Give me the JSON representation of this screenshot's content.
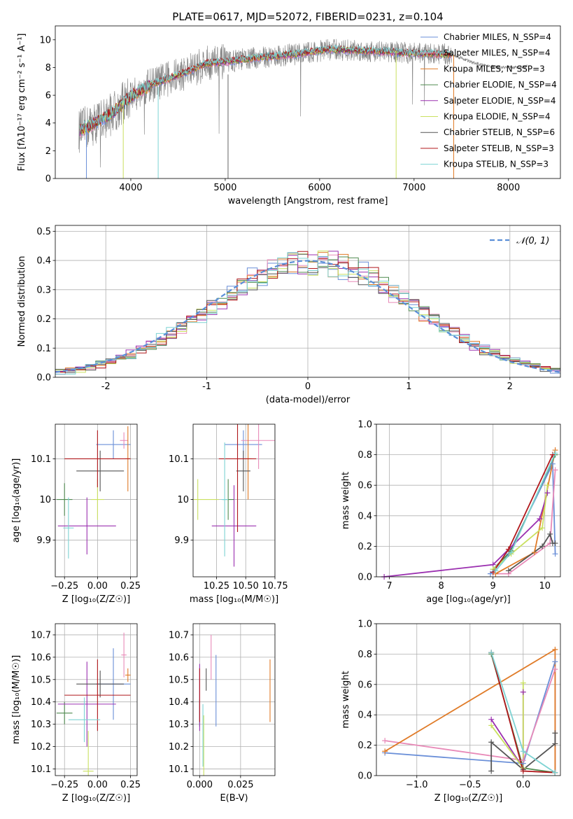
{
  "colors": [
    "#6a8fd8",
    "#e88ab8",
    "#e07b28",
    "#4f8a4f",
    "#9b30b0",
    "#c9e060",
    "#555555",
    "#b0181c",
    "#7dd3d3"
  ],
  "chart_data": [
    {
      "id": "spectrum",
      "type": "line",
      "title": "PLATE=0617, MJD=52072, FIBERID=0231, z=0.104",
      "xlabel": "wavelength [Angstrom, rest frame]",
      "ylabel": "Flux [fλ10⁻¹⁷ erg cm⁻² s⁻¹ A⁻¹]",
      "xlim": [
        3200,
        8550
      ],
      "ylim": [
        0,
        11
      ],
      "xticks": [
        4000,
        5000,
        6000,
        7000,
        8000
      ],
      "yticks": [
        0,
        2,
        4,
        6,
        8,
        10
      ],
      "legend_position": "upper-right",
      "legend": [
        "Chabrier MILES, N_SSP=4",
        "Salpeter MILES, N_SSP=4",
        "Kroupa MILES, N_SSP=3",
        "Chabrier ELODIE, N_SSP=4",
        "Salpeter ELODIE, N_SSP=4",
        "Kroupa ELODIE, N_SSP=4",
        "Chabrier STELIB, N_SSP=6",
        "Salpeter STELIB, N_SSP=3",
        "Kroupa STELIB, N_SSP=3"
      ],
      "data_series": {
        "name": "",
        "color": "#808080"
      },
      "model_continuum": {
        "x": [
          3450,
          3600,
          3800,
          4000,
          4200,
          4400,
          4600,
          4800,
          5000,
          5200,
          5500,
          5800,
          6100,
          6500,
          6800,
          7000,
          7200,
          7400
        ],
        "y": [
          3.4,
          3.9,
          4.7,
          5.9,
          6.7,
          7.2,
          7.7,
          8.3,
          8.4,
          8.6,
          8.8,
          9.0,
          9.3,
          9.2,
          9.1,
          9.0,
          9.0,
          8.9
        ]
      },
      "data_tail": {
        "x": [
          7400,
          7500,
          7600,
          7700,
          7800,
          7900,
          8000,
          8100,
          8200
        ],
        "y": [
          8.9,
          8.7,
          8.4,
          8.2,
          8.1,
          8.0,
          8.0,
          8.0,
          8.1
        ]
      }
    },
    {
      "id": "residuals",
      "type": "histogram",
      "xlabel": "(data-model)/error",
      "ylabel": "Normed distribution",
      "xlim": [
        -2.5,
        2.5
      ],
      "ylim": [
        0,
        0.52
      ],
      "xticks": [
        -2,
        -1,
        0,
        1,
        2
      ],
      "yticks": [
        0.0,
        0.1,
        0.2,
        0.3,
        0.4,
        0.5
      ],
      "grid": true,
      "legend_position": "upper-right",
      "gaussian_label": "𝒩(0, 1)",
      "gaussian_color": "#5b8fd8",
      "bin_width": 0.1,
      "bins_from": -2.5,
      "bins_to": 2.5
    },
    {
      "id": "age_vs_z",
      "type": "errorbar",
      "xlabel": "Z [log₁₀(Z/Z☉)]",
      "ylabel": "age  [log₁₀(age/yr)]",
      "xlim": [
        -0.32,
        0.3
      ],
      "ylim": [
        9.81,
        10.185
      ],
      "xticks": [
        -0.25,
        0.0,
        0.25
      ],
      "xticklabels": [
        "−0.25",
        "0.00",
        "0.25"
      ],
      "yticks": [
        9.9,
        10.0,
        10.1
      ],
      "grid": true,
      "points": [
        {
          "x": 0.12,
          "xerr": 0.13,
          "y": 10.135,
          "yerr": 0.035,
          "c": 0
        },
        {
          "x": 0.2,
          "xerr": 0.03,
          "y": 10.145,
          "yerr": 0.02,
          "c": 1
        },
        {
          "x": 0.23,
          "xerr": 0.02,
          "y": 10.1,
          "yerr": 0.08,
          "c": 2
        },
        {
          "x": -0.25,
          "xerr": 0.06,
          "y": 10.0,
          "yerr": 0.04,
          "c": 3
        },
        {
          "x": -0.08,
          "xerr": 0.22,
          "y": 9.935,
          "yerr": 0.07,
          "c": 4
        },
        {
          "x": 0.0,
          "xerr": 0.05,
          "y": 10.0,
          "yerr": 0.05,
          "c": 5
        },
        {
          "x": 0.02,
          "xerr": 0.18,
          "y": 10.07,
          "yerr": 0.05,
          "c": 6
        },
        {
          "x": 0.0,
          "xerr": 0.25,
          "y": 10.1,
          "yerr": 0.07,
          "c": 7
        },
        {
          "x": -0.22,
          "xerr": 0.04,
          "y": 9.93,
          "yerr": 0.075,
          "c": 8
        }
      ]
    },
    {
      "id": "age_vs_mass",
      "type": "errorbar",
      "xlabel": "mass [log₁₀(M/M☉)]",
      "ylabel": "",
      "xlim": [
        10.05,
        10.75
      ],
      "ylim": [
        9.81,
        10.185
      ],
      "xticks": [
        10.25,
        10.5,
        10.75
      ],
      "xticklabels": [
        "10.25",
        "10.50",
        "10.75"
      ],
      "yticks": [
        9.9,
        10.0,
        10.1
      ],
      "grid": true,
      "points": [
        {
          "x": 10.48,
          "xerr": 0.16,
          "y": 10.135,
          "yerr": 0.035,
          "c": 0
        },
        {
          "x": 10.61,
          "xerr": 0.15,
          "y": 10.145,
          "yerr": 0.07,
          "c": 1
        },
        {
          "x": 10.52,
          "xerr": 0.03,
          "y": 10.1,
          "yerr": 0.1,
          "c": 2
        },
        {
          "x": 10.35,
          "xerr": 0.05,
          "y": 10.0,
          "yerr": 0.05,
          "c": 3
        },
        {
          "x": 10.4,
          "xerr": 0.19,
          "y": 9.935,
          "yerr": 0.1,
          "c": 4
        },
        {
          "x": 10.09,
          "xerr": 0.18,
          "y": 10.0,
          "yerr": 0.05,
          "c": 5
        },
        {
          "x": 10.48,
          "xerr": 0.06,
          "y": 10.07,
          "yerr": 0.05,
          "c": 6
        },
        {
          "x": 10.43,
          "xerr": 0.16,
          "y": 10.1,
          "yerr": 0.18,
          "c": 7
        },
        {
          "x": 10.32,
          "xerr": 0.03,
          "y": 10.0,
          "yerr": 0.14,
          "c": 8
        }
      ]
    },
    {
      "id": "mass_weight_vs_age",
      "type": "line",
      "xlabel": "age  [log₁₀(age/yr)]",
      "ylabel": "mass weight",
      "xlim": [
        6.75,
        10.3
      ],
      "ylim": [
        0,
        1.0
      ],
      "xticks": [
        7,
        8,
        9,
        10
      ],
      "yticks": [
        0.0,
        0.2,
        0.4,
        0.6,
        0.8,
        1.0
      ],
      "grid": true,
      "series": [
        {
          "c": 0,
          "x": [
            8.95,
            9.3,
            10.15,
            10.2
          ],
          "y": [
            0.02,
            0.15,
            0.74,
            0.15
          ]
        },
        {
          "c": 1,
          "x": [
            9.05,
            9.3,
            10.1,
            10.2
          ],
          "y": [
            0.02,
            0.02,
            0.22,
            0.7
          ]
        },
        {
          "c": 2,
          "x": [
            9.05,
            9.8,
            10.2
          ],
          "y": [
            0.02,
            0.16,
            0.83
          ]
        },
        {
          "c": 3,
          "x": [
            9.0,
            9.35,
            10.2
          ],
          "y": [
            0.05,
            0.17,
            0.8
          ]
        },
        {
          "c": 4,
          "x": [
            6.9,
            9.0,
            9.9,
            10.05
          ],
          "y": [
            0.0,
            0.08,
            0.38,
            0.55
          ]
        },
        {
          "c": 5,
          "x": [
            9.0,
            9.35,
            9.95,
            10.05
          ],
          "y": [
            0.05,
            0.15,
            0.32,
            0.6
          ]
        },
        {
          "c": 6,
          "x": [
            9.3,
            9.95,
            10.1,
            10.15,
            10.2
          ],
          "y": [
            0.04,
            0.2,
            0.28,
            0.22,
            0.22
          ]
        },
        {
          "c": 7,
          "x": [
            9.0,
            9.3,
            10.15
          ],
          "y": [
            0.03,
            0.18,
            0.8
          ]
        },
        {
          "c": 8,
          "x": [
            9.05,
            9.35,
            10.2
          ],
          "y": [
            0.04,
            0.16,
            0.81
          ]
        }
      ]
    },
    {
      "id": "mass_vs_z",
      "type": "errorbar",
      "xlabel": "Z [log₁₀(Z/Z☉)]",
      "ylabel": "mass [log₁₀(M/M☉)]",
      "xlim": [
        -0.32,
        0.3
      ],
      "ylim": [
        10.07,
        10.75
      ],
      "xticks": [
        -0.25,
        0.0,
        0.25
      ],
      "xticklabels": [
        "−0.25",
        "0.00",
        "0.25"
      ],
      "yticks": [
        10.1,
        10.2,
        10.3,
        10.4,
        10.5,
        10.6,
        10.7
      ],
      "grid": true,
      "points": [
        {
          "x": 0.12,
          "xerr": 0.13,
          "y": 10.48,
          "yerr": 0.16,
          "c": 0
        },
        {
          "x": 0.2,
          "xerr": 0.02,
          "y": 10.61,
          "yerr": 0.1,
          "c": 1
        },
        {
          "x": 0.23,
          "xerr": 0.02,
          "y": 10.52,
          "yerr": 0.03,
          "c": 2
        },
        {
          "x": -0.25,
          "xerr": 0.06,
          "y": 10.35,
          "yerr": 0.05,
          "c": 3
        },
        {
          "x": -0.08,
          "xerr": 0.22,
          "y": 10.39,
          "yerr": 0.19,
          "c": 4
        },
        {
          "x": -0.07,
          "xerr": 0.04,
          "y": 10.09,
          "yerr": 0.18,
          "c": 5
        },
        {
          "x": 0.02,
          "xerr": 0.18,
          "y": 10.48,
          "yerr": 0.06,
          "c": 6
        },
        {
          "x": 0.0,
          "xerr": 0.25,
          "y": 10.43,
          "yerr": 0.16,
          "c": 7
        },
        {
          "x": -0.1,
          "xerr": 0.12,
          "y": 10.32,
          "yerr": 0.1,
          "c": 8
        }
      ]
    },
    {
      "id": "mass_vs_ebv",
      "type": "errorbar",
      "xlabel": "E(B-V)",
      "ylabel": "",
      "xlim": [
        -0.004,
        0.046
      ],
      "ylim": [
        10.07,
        10.75
      ],
      "xticks": [
        0.0,
        0.025
      ],
      "xticklabels": [
        "0.000",
        "0.025"
      ],
      "yticks": [
        10.1,
        10.2,
        10.3,
        10.4,
        10.5,
        10.6,
        10.7
      ],
      "grid": true,
      "points": [
        {
          "x": 0.01,
          "xerr": 0,
          "y": 10.45,
          "yerr": 0.16,
          "c": 0
        },
        {
          "x": 0.007,
          "xerr": 0,
          "y": 10.6,
          "yerr": 0.1,
          "c": 1
        },
        {
          "x": 0.043,
          "xerr": 0,
          "y": 10.45,
          "yerr": 0.14,
          "c": 2
        },
        {
          "x": 0.0,
          "xerr": 0,
          "y": 10.35,
          "yerr": 0.06,
          "c": 3
        },
        {
          "x": 0.0,
          "xerr": 0,
          "y": 10.42,
          "yerr": 0.15,
          "c": 4
        },
        {
          "x": 0.0025,
          "xerr": 0,
          "y": 10.2,
          "yerr": 0.14,
          "c": 5
        },
        {
          "x": 0.004,
          "xerr": 0,
          "y": 10.5,
          "yerr": 0.05,
          "c": 6
        },
        {
          "x": 0.0,
          "xerr": 0,
          "y": 10.43,
          "yerr": 0.12,
          "c": 7
        },
        {
          "x": 0.002,
          "xerr": 0,
          "y": 10.25,
          "yerr": 0.14,
          "c": 8
        }
      ]
    },
    {
      "id": "mass_weight_vs_z",
      "type": "line",
      "xlabel": "Z [log₁₀(Z/Z☉)]",
      "ylabel": "mass weight",
      "xlim": [
        -1.38,
        0.35
      ],
      "ylim": [
        0,
        1.0
      ],
      "xticks": [
        -1.0,
        -0.5,
        0.0
      ],
      "xticklabels": [
        "−1.0",
        "−0.5",
        "0.0"
      ],
      "yticks": [
        0.0,
        0.2,
        0.4,
        0.6,
        0.8,
        1.0
      ],
      "grid": true,
      "series": [
        {
          "c": 0,
          "x": [
            -1.3,
            0.0,
            0.3,
            0.3
          ],
          "y": [
            0.15,
            0.08,
            0.75,
            0.02
          ]
        },
        {
          "c": 1,
          "x": [
            -1.3,
            0.0,
            0.3,
            0.3
          ],
          "y": [
            0.23,
            0.1,
            0.7,
            0.02
          ]
        },
        {
          "c": 2,
          "x": [
            -1.3,
            0.3,
            0.3
          ],
          "y": [
            0.16,
            0.83,
            0.02
          ]
        },
        {
          "c": 3,
          "x": [
            -0.3,
            0.0,
            0.3
          ],
          "y": [
            0.8,
            0.05,
            0.02
          ]
        },
        {
          "c": 4,
          "x": [
            -0.3,
            0.0,
            0.0
          ],
          "y": [
            0.37,
            0.05,
            0.55
          ]
        },
        {
          "c": 5,
          "x": [
            -0.3,
            0.0,
            0.0
          ],
          "y": [
            0.33,
            0.05,
            0.61
          ]
        },
        {
          "c": 6,
          "x": [
            -0.3,
            -0.3,
            0.0,
            0.3,
            0.3
          ],
          "y": [
            0.03,
            0.22,
            0.04,
            0.21,
            0.28
          ]
        },
        {
          "c": 7,
          "x": [
            -0.3,
            0.0,
            0.3
          ],
          "y": [
            0.81,
            0.03,
            0.02
          ]
        },
        {
          "c": 8,
          "x": [
            -0.3,
            0.0,
            0.3
          ],
          "y": [
            0.81,
            0.16,
            0.02
          ]
        }
      ]
    }
  ]
}
